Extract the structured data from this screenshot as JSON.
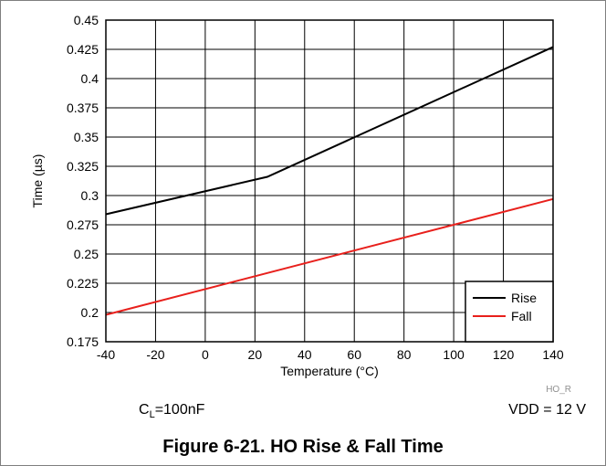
{
  "chart_data": {
    "type": "line",
    "xlabel": "Temperature (°C)",
    "ylabel": "Time (µs)",
    "xlim": [
      -40,
      140
    ],
    "ylim": [
      0.175,
      0.45
    ],
    "x_ticks": [
      "-40",
      "-20",
      "0",
      "20",
      "40",
      "60",
      "80",
      "100",
      "120",
      "140"
    ],
    "y_ticks": [
      "0.175",
      "0.2",
      "0.225",
      "0.25",
      "0.275",
      "0.3",
      "0.325",
      "0.35",
      "0.375",
      "0.4",
      "0.425",
      "0.45"
    ],
    "grid": true,
    "legend_position": "bottom-right",
    "series": [
      {
        "name": "Rise",
        "color": "#000000",
        "x": [
          -40,
          25,
          140
        ],
        "y": [
          0.284,
          0.316,
          0.427
        ]
      },
      {
        "name": "Fall",
        "color": "#e8201c",
        "x": [
          -40,
          140
        ],
        "y": [
          0.198,
          0.297
        ]
      }
    ]
  },
  "annotations": {
    "load": {
      "prefix": "C",
      "subscript": "L",
      "suffix": "=100nF"
    },
    "supply": "VDD = 12 V",
    "ref_code": "HO_R"
  },
  "figure_title": "Figure 6-21. HO Rise & Fall Time"
}
